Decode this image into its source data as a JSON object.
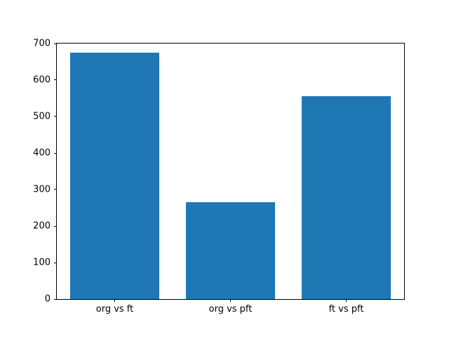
{
  "figure": {
    "background": "#ffffff",
    "plot_background": "#ffffff",
    "spine_color": "#000000",
    "tick_color": "#000000",
    "text_color": "#000000"
  },
  "chart_data": {
    "type": "bar",
    "categories": [
      "org vs ft",
      "org vs pft",
      "ft vs pft"
    ],
    "values": [
      675,
      265,
      555
    ],
    "title": "",
    "xlabel": "",
    "ylabel": "",
    "ylim": [
      0,
      700
    ],
    "yticks": [
      0,
      100,
      200,
      300,
      400,
      500,
      600,
      700
    ],
    "bar_color": "#1f77b4",
    "bar_width_fraction": 0.77,
    "grid": false,
    "legend_position": null
  }
}
